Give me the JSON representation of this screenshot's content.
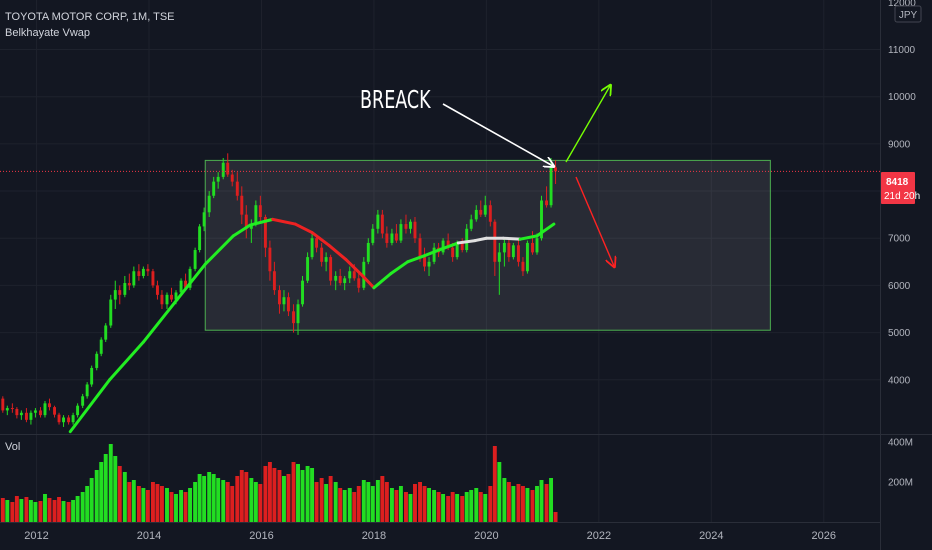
{
  "header": {
    "symbol_line": "TOYOTA MOTOR CORP, 1M, TSE",
    "indicator": "Belkhayate Vwap",
    "currency": "JPY",
    "volume_label": "Vol"
  },
  "price_badge": {
    "price": "8418",
    "countdown": "21d 20h"
  },
  "annotation": {
    "text": "BREACK"
  },
  "chart_data": {
    "type": "candlestick",
    "title": "TOYOTA MOTOR CORP, 1M, TSE",
    "price_axis": {
      "ticks": [
        4000,
        5000,
        6000,
        7000,
        8000,
        9000,
        10000,
        11000
      ],
      "top_tick_partial": 12000,
      "range": [
        2850,
        12050
      ]
    },
    "volume_axis": {
      "ticks": [
        "200M",
        "400M"
      ],
      "tick_values": [
        200,
        400
      ],
      "unit": "M"
    },
    "x_axis": {
      "ticks": [
        "2012",
        "2014",
        "2016",
        "2018",
        "2020",
        "2022",
        "2024",
        "2026"
      ],
      "tick_values": [
        2012,
        2014,
        2016,
        2018,
        2020,
        2022,
        2024,
        2026
      ],
      "range": [
        2011.35,
        2027.0
      ]
    },
    "last_price": 8418,
    "range_box": {
      "x": [
        2015.0,
        2025.05
      ],
      "y": [
        5050,
        8650
      ],
      "label": ""
    },
    "colors": {
      "up": "#22dd22",
      "down": "#dd1f1f",
      "vwap_up": "#22ee22",
      "vwap_down": "#ee2222",
      "box": "#4caf50",
      "badge": "#f23645",
      "bg": "#131722"
    },
    "vwap": [
      [
        2012.6,
        2900
      ],
      [
        2013.3,
        4000
      ],
      [
        2013.9,
        4800
      ],
      [
        2014.5,
        5700
      ],
      [
        2015.0,
        6450
      ],
      [
        2015.5,
        7050
      ],
      [
        2015.8,
        7280
      ],
      [
        2016.2,
        7400
      ],
      [
        2016.6,
        7300
      ],
      [
        2016.9,
        7120
      ],
      [
        2017.2,
        6850
      ],
      [
        2017.5,
        6550
      ],
      [
        2017.8,
        6200
      ],
      [
        2018.0,
        5950
      ],
      [
        2018.3,
        6250
      ],
      [
        2018.6,
        6500
      ],
      [
        2018.9,
        6630
      ],
      [
        2019.2,
        6770
      ],
      [
        2019.5,
        6900
      ],
      [
        2019.8,
        6950
      ],
      [
        2020.0,
        7000
      ],
      [
        2020.3,
        7000
      ],
      [
        2020.6,
        6980
      ],
      [
        2020.9,
        7050
      ],
      [
        2021.2,
        7300
      ]
    ],
    "candles": [
      [
        2011.4,
        3600,
        3650,
        3300,
        3350,
        120
      ],
      [
        2011.48,
        3350,
        3450,
        3250,
        3400,
        110
      ],
      [
        2011.57,
        3400,
        3500,
        3300,
        3380,
        100
      ],
      [
        2011.65,
        3380,
        3420,
        3180,
        3250,
        130
      ],
      [
        2011.73,
        3250,
        3350,
        3150,
        3300,
        115
      ],
      [
        2011.82,
        3300,
        3400,
        3100,
        3150,
        125
      ],
      [
        2011.9,
        3150,
        3350,
        3050,
        3300,
        110
      ],
      [
        2011.98,
        3300,
        3400,
        3200,
        3350,
        100
      ],
      [
        2012.07,
        3350,
        3420,
        3200,
        3250,
        105
      ],
      [
        2012.15,
        3250,
        3550,
        3200,
        3500,
        140
      ],
      [
        2012.23,
        3500,
        3600,
        3350,
        3420,
        120
      ],
      [
        2012.32,
        3420,
        3450,
        3200,
        3260,
        110
      ],
      [
        2012.4,
        3260,
        3300,
        3050,
        3100,
        125
      ],
      [
        2012.48,
        3100,
        3250,
        3000,
        3200,
        105
      ],
      [
        2012.57,
        3200,
        3250,
        3050,
        3100,
        100
      ],
      [
        2012.65,
        3100,
        3300,
        3050,
        3250,
        110
      ],
      [
        2012.73,
        3250,
        3500,
        3200,
        3450,
        130
      ],
      [
        2012.82,
        3450,
        3700,
        3400,
        3650,
        150
      ],
      [
        2012.9,
        3650,
        3950,
        3600,
        3900,
        180
      ],
      [
        2012.98,
        3900,
        4300,
        3850,
        4250,
        220
      ],
      [
        2013.07,
        4250,
        4600,
        4200,
        4550,
        260
      ],
      [
        2013.15,
        4550,
        4900,
        4500,
        4850,
        300
      ],
      [
        2013.23,
        4850,
        5200,
        4800,
        5150,
        340
      ],
      [
        2013.32,
        5150,
        5800,
        5100,
        5700,
        390
      ],
      [
        2013.4,
        5700,
        6100,
        5500,
        5900,
        330
      ],
      [
        2013.48,
        5900,
        6000,
        5600,
        5800,
        280
      ],
      [
        2013.57,
        5800,
        6200,
        5750,
        6050,
        250
      ],
      [
        2013.65,
        6050,
        6250,
        5900,
        6000,
        200
      ],
      [
        2013.73,
        6000,
        6400,
        5950,
        6300,
        210
      ],
      [
        2013.82,
        6300,
        6450,
        6100,
        6200,
        180
      ],
      [
        2013.9,
        6200,
        6400,
        6150,
        6350,
        170
      ],
      [
        2013.98,
        6350,
        6450,
        6200,
        6300,
        160
      ],
      [
        2014.07,
        6300,
        6350,
        5950,
        6000,
        200
      ],
      [
        2014.15,
        6000,
        6100,
        5700,
        5800,
        190
      ],
      [
        2014.23,
        5800,
        5900,
        5500,
        5600,
        180
      ],
      [
        2014.32,
        5600,
        5850,
        5500,
        5800,
        170
      ],
      [
        2014.4,
        5800,
        5950,
        5650,
        5700,
        150
      ],
      [
        2014.48,
        5700,
        5900,
        5600,
        5850,
        140
      ],
      [
        2014.57,
        5850,
        6150,
        5800,
        6100,
        160
      ],
      [
        2014.65,
        6100,
        6250,
        5900,
        5950,
        150
      ],
      [
        2014.73,
        5950,
        6400,
        5900,
        6350,
        170
      ],
      [
        2014.82,
        6350,
        6800,
        6300,
        6750,
        200
      ],
      [
        2014.9,
        6750,
        7300,
        6700,
        7250,
        240
      ],
      [
        2014.98,
        7250,
        7650,
        7150,
        7550,
        230
      ],
      [
        2015.07,
        7550,
        8000,
        7450,
        7900,
        250
      ],
      [
        2015.15,
        7900,
        8300,
        7850,
        8200,
        240
      ],
      [
        2015.23,
        8200,
        8400,
        8050,
        8300,
        220
      ],
      [
        2015.32,
        8300,
        8700,
        8250,
        8600,
        210
      ],
      [
        2015.4,
        8600,
        8800,
        8300,
        8350,
        200
      ],
      [
        2015.48,
        8350,
        8450,
        8100,
        8200,
        180
      ],
      [
        2015.57,
        8200,
        8400,
        7800,
        7900,
        230
      ],
      [
        2015.65,
        7900,
        8100,
        7300,
        7500,
        260
      ],
      [
        2015.73,
        7500,
        7700,
        7000,
        7200,
        250
      ],
      [
        2015.82,
        7200,
        7400,
        6900,
        7300,
        220
      ],
      [
        2015.9,
        7300,
        7800,
        7250,
        7700,
        200
      ],
      [
        2015.98,
        7700,
        7900,
        7350,
        7450,
        190
      ],
      [
        2016.07,
        7450,
        7500,
        6600,
        6800,
        280
      ],
      [
        2016.15,
        6800,
        6950,
        6100,
        6300,
        300
      ],
      [
        2016.23,
        6300,
        6500,
        5800,
        5900,
        270
      ],
      [
        2016.32,
        5900,
        6000,
        5400,
        5600,
        260
      ],
      [
        2016.4,
        5600,
        5900,
        5450,
        5750,
        230
      ],
      [
        2016.48,
        5750,
        5850,
        5350,
        5450,
        240
      ],
      [
        2016.57,
        5450,
        5600,
        5000,
        5200,
        300
      ],
      [
        2016.65,
        5200,
        5700,
        4950,
        5600,
        290
      ],
      [
        2016.73,
        5600,
        6200,
        5550,
        6100,
        260
      ],
      [
        2016.82,
        6100,
        6700,
        6050,
        6600,
        280
      ],
      [
        2016.9,
        6600,
        7100,
        6550,
        7000,
        270
      ],
      [
        2016.98,
        7000,
        7050,
        6700,
        6800,
        200
      ],
      [
        2017.07,
        6800,
        6900,
        6400,
        6500,
        220
      ],
      [
        2017.15,
        6500,
        6700,
        6300,
        6600,
        190
      ],
      [
        2017.23,
        6600,
        6650,
        6000,
        6100,
        230
      ],
      [
        2017.32,
        6100,
        6300,
        5900,
        6200,
        200
      ],
      [
        2017.4,
        6200,
        6350,
        6000,
        6050,
        170
      ],
      [
        2017.48,
        6050,
        6200,
        5900,
        6150,
        160
      ],
      [
        2017.57,
        6150,
        6400,
        6050,
        6300,
        170
      ],
      [
        2017.65,
        6300,
        6450,
        6100,
        6150,
        150
      ],
      [
        2017.73,
        6150,
        6300,
        5850,
        5950,
        180
      ],
      [
        2017.82,
        5950,
        6600,
        5900,
        6500,
        210
      ],
      [
        2017.9,
        6500,
        7000,
        6450,
        6900,
        200
      ],
      [
        2017.98,
        6900,
        7300,
        6850,
        7200,
        180
      ],
      [
        2018.07,
        7200,
        7600,
        7100,
        7500,
        210
      ],
      [
        2018.15,
        7500,
        7600,
        7000,
        7100,
        230
      ],
      [
        2018.23,
        7100,
        7250,
        6800,
        6900,
        200
      ],
      [
        2018.32,
        6900,
        7200,
        6850,
        7100,
        170
      ],
      [
        2018.4,
        7100,
        7300,
        6900,
        6950,
        160
      ],
      [
        2018.48,
        6950,
        7400,
        6900,
        7300,
        180
      ],
      [
        2018.57,
        7300,
        7500,
        7100,
        7200,
        150
      ],
      [
        2018.65,
        7200,
        7400,
        7100,
        7350,
        140
      ],
      [
        2018.73,
        7350,
        7450,
        6900,
        7000,
        190
      ],
      [
        2018.82,
        7000,
        7100,
        6500,
        6600,
        200
      ],
      [
        2018.9,
        6600,
        6800,
        6300,
        6400,
        180
      ],
      [
        2018.98,
        6400,
        6600,
        6200,
        6500,
        170
      ],
      [
        2019.07,
        6500,
        6900,
        6450,
        6800,
        160
      ],
      [
        2019.15,
        6800,
        6900,
        6600,
        6700,
        150
      ],
      [
        2019.23,
        6700,
        7000,
        6650,
        6950,
        140
      ],
      [
        2019.32,
        6950,
        7100,
        6750,
        6800,
        130
      ],
      [
        2019.4,
        6800,
        6900,
        6500,
        6600,
        150
      ],
      [
        2019.48,
        6600,
        6950,
        6550,
        6900,
        140
      ],
      [
        2019.57,
        6900,
        7000,
        6700,
        6750,
        130
      ],
      [
        2019.65,
        6750,
        7300,
        6700,
        7200,
        150
      ],
      [
        2019.73,
        7200,
        7500,
        7150,
        7400,
        160
      ],
      [
        2019.82,
        7400,
        7700,
        7350,
        7600,
        170
      ],
      [
        2019.9,
        7600,
        7800,
        7450,
        7500,
        150
      ],
      [
        2019.98,
        7500,
        7900,
        7450,
        7700,
        140
      ],
      [
        2020.07,
        7700,
        7800,
        7250,
        7350,
        180
      ],
      [
        2020.15,
        7350,
        7400,
        6200,
        6500,
        380
      ],
      [
        2020.23,
        6500,
        6900,
        5800,
        6700,
        300
      ],
      [
        2020.32,
        6700,
        7000,
        6400,
        6900,
        220
      ],
      [
        2020.4,
        6900,
        7000,
        6500,
        6600,
        200
      ],
      [
        2020.48,
        6600,
        6900,
        6550,
        6850,
        180
      ],
      [
        2020.57,
        6850,
        6950,
        6400,
        6500,
        190
      ],
      [
        2020.65,
        6500,
        6600,
        6200,
        6300,
        180
      ],
      [
        2020.73,
        6300,
        6950,
        6250,
        6900,
        170
      ],
      [
        2020.82,
        6900,
        7150,
        6650,
        6700,
        160
      ],
      [
        2020.9,
        6700,
        7100,
        6650,
        7000,
        180
      ],
      [
        2020.98,
        7000,
        7900,
        6950,
        7800,
        210
      ],
      [
        2021.07,
        7800,
        8100,
        7650,
        7700,
        190
      ],
      [
        2021.15,
        7700,
        8700,
        7650,
        8500,
        220
      ],
      [
        2021.23,
        8500,
        8650,
        8150,
        8418,
        50
      ]
    ]
  }
}
